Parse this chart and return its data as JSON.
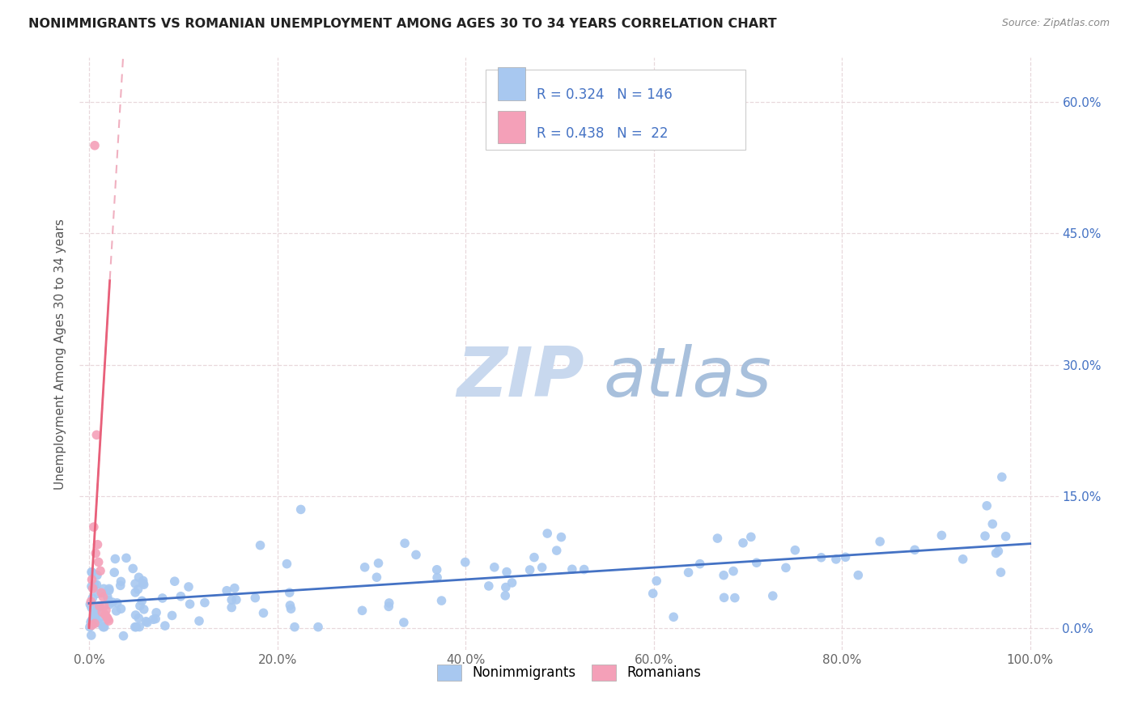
{
  "title": "NONIMMIGRANTS VS ROMANIAN UNEMPLOYMENT AMONG AGES 30 TO 34 YEARS CORRELATION CHART",
  "source": "Source: ZipAtlas.com",
  "ylabel_label": "Unemployment Among Ages 30 to 34 years",
  "legend_label1": "Nonimmigrants",
  "legend_label2": "Romanians",
  "R1": 0.324,
  "N1": 146,
  "R2": 0.438,
  "N2": 22,
  "color_blue": "#A8C8F0",
  "color_pink": "#F4A0B8",
  "color_blue_text": "#4472C4",
  "trendline_blue": "#4472C4",
  "trendline_pink_solid": "#E8607A",
  "trendline_pink_dash": "#F0B0C0",
  "watermark_zip_color": "#C8D8F0",
  "watermark_atlas_color": "#A0B8D8",
  "background_color": "#FFFFFF",
  "grid_color": "#E8D8DC",
  "xlim": [
    -0.01,
    1.03
  ],
  "ylim": [
    -0.025,
    0.65
  ],
  "xtick_vals": [
    0.0,
    0.2,
    0.4,
    0.6,
    0.8,
    1.0
  ],
  "xtick_labels": [
    "0.0%",
    "20.0%",
    "40.0%",
    "60.0%",
    "80.0%",
    "100.0%"
  ],
  "ytick_vals": [
    0.0,
    0.15,
    0.3,
    0.45,
    0.6
  ],
  "ytick_labels": [
    "0.0%",
    "15.0%",
    "30.0%",
    "45.0%",
    "60.0%"
  ]
}
